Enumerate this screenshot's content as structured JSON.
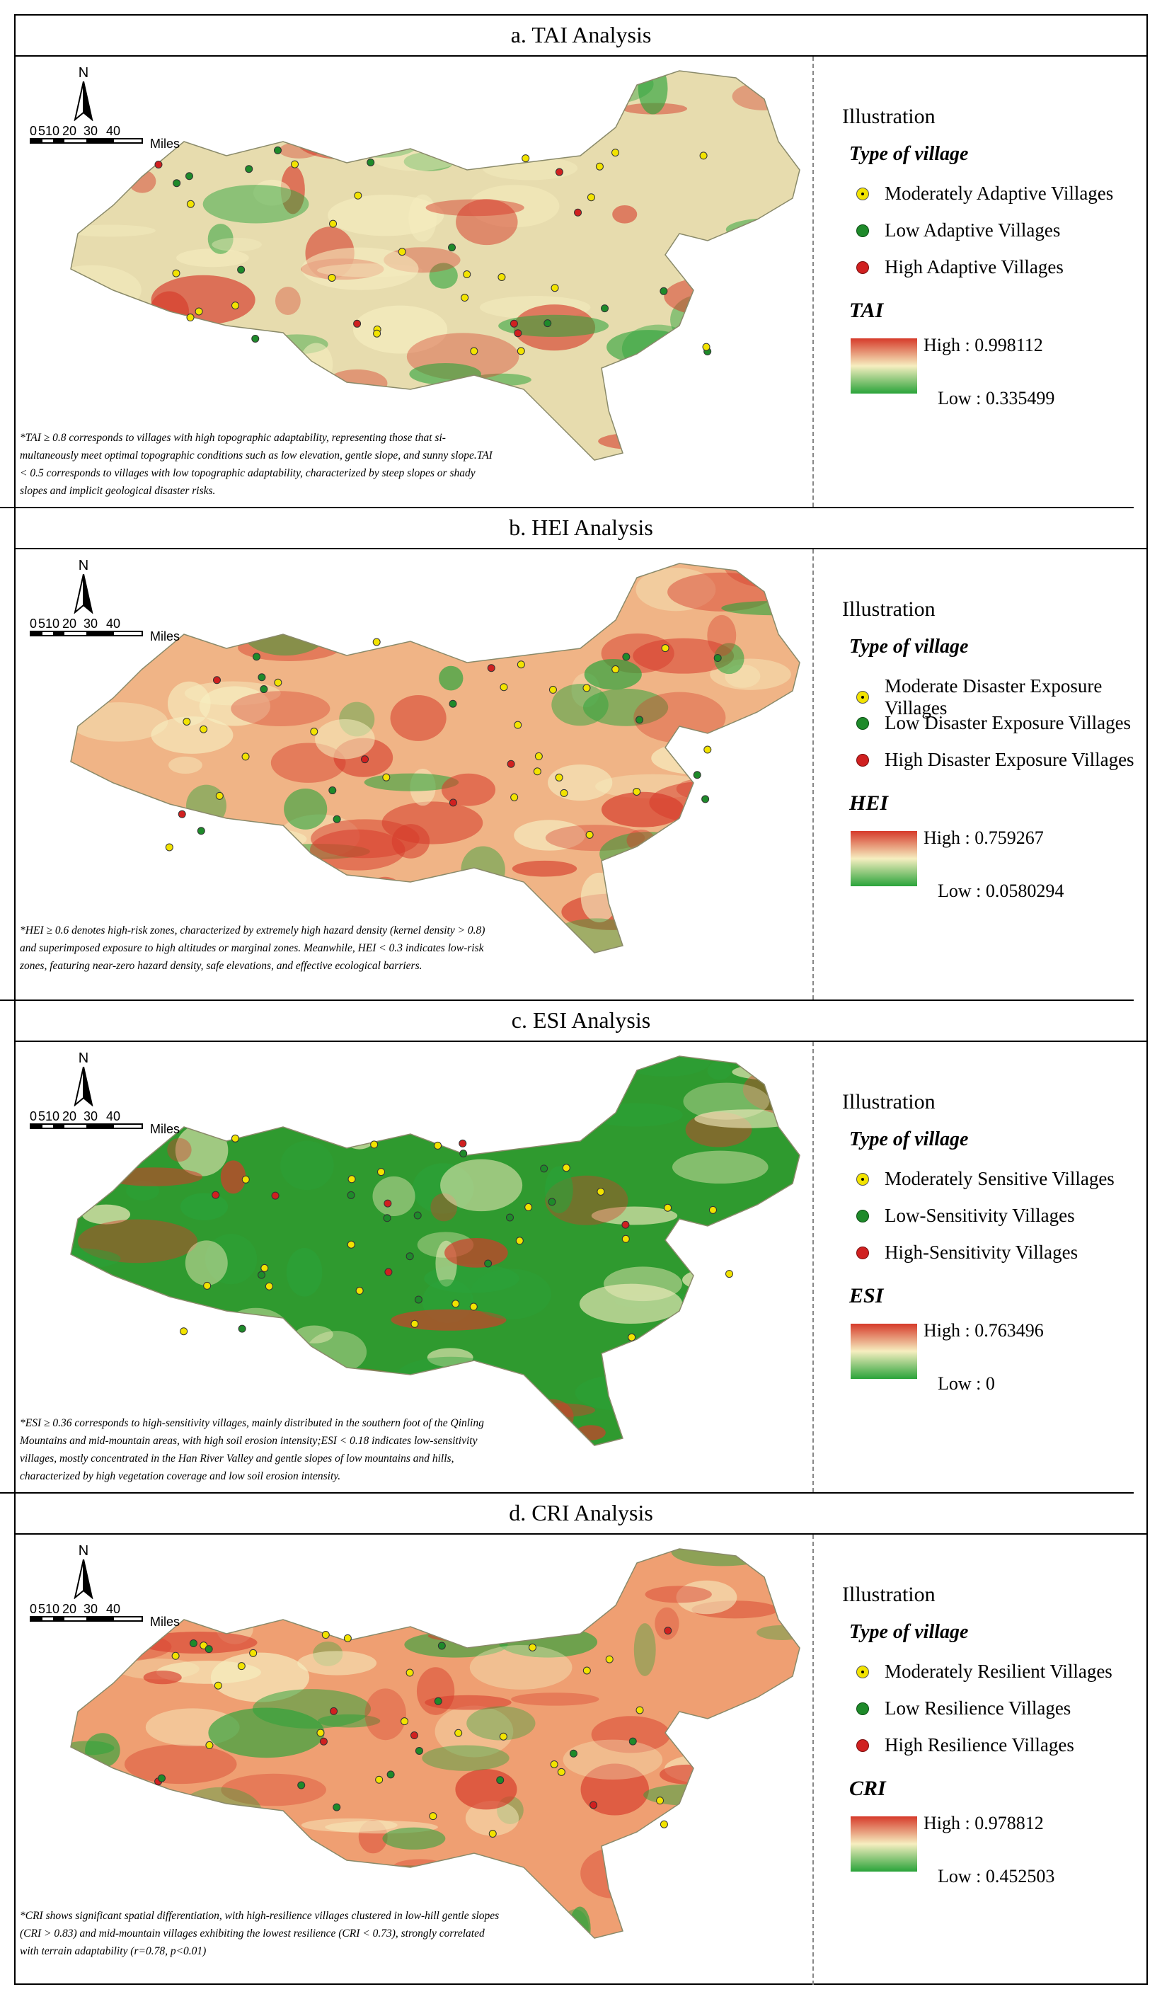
{
  "panels": [
    {
      "id": "tai",
      "title": "a. TAI Analysis",
      "index_name": "TAI",
      "high_label": "High : 0.998112",
      "low_label": "Low : 0.335499",
      "legend_heading": "Illustration",
      "legend_subheading": "Type of village",
      "legend_items": [
        "Moderately Adaptive Villages",
        "Low Adaptive Villages",
        "High Adaptive Villages"
      ],
      "footnote": "*TAI ≥ 0.8 corresponds to villages with high topographic adaptability, representing those that si-multaneously meet optimal topographic conditions such as low elevation, gentle slope, and sunny slope.TAI < 0.5 corresponds to villages with low topographic adaptability, characterized by steep slopes or shady slopes and implicit geological disaster risks.",
      "palette": {
        "high": "#d63a2a",
        "mid": "#f6eec0",
        "low": "#2aa33a",
        "base": "#e7dcae"
      }
    },
    {
      "id": "hei",
      "title": "b. HEI Analysis",
      "index_name": "HEI",
      "high_label": "High : 0.759267",
      "low_label": "Low : 0.0580294",
      "legend_heading": "Illustration",
      "legend_subheading": "Type of village",
      "legend_items": [
        "Moderate Disaster Exposure Villages",
        "Low Disaster Exposure Villages",
        "High Disaster Exposure Villages"
      ],
      "footnote": "*HEI ≥ 0.6 denotes high-risk zones, characterized by extremely high hazard density (kernel density > 0.8) and superimposed exposure to high altitudes or marginal zones. Meanwhile, HEI < 0.3 indicates low-risk zones, featuring near-zero hazard density, safe elevations, and effective ecological barriers.",
      "palette": {
        "high": "#d63a2a",
        "mid": "#f6eec0",
        "low": "#2aa33a",
        "base": "#f0b486"
      }
    },
    {
      "id": "esi",
      "title": "c. ESI Analysis",
      "index_name": "ESI",
      "high_label": "High : 0.763496",
      "low_label": "Low : 0",
      "legend_heading": "Illustration",
      "legend_subheading": "Type of village",
      "legend_items": [
        "Moderately Sensitive Villages",
        "Low-Sensitivity Villages",
        "High-Sensitivity Villages"
      ],
      "footnote": "*ESI ≥ 0.36 corresponds to high-sensitivity villages, mainly distributed in the southern foot of the Qinling Mountains and mid-mountain areas, with high soil erosion intensity;ESI < 0.18 indicates low-sensitivity villages, mostly concentrated in the Han River Valley and gentle slopes of low mountains and hills, characterized by high vegetation coverage and low soil erosion intensity.",
      "palette": {
        "high": "#d63a2a",
        "mid": "#f6eec0",
        "low": "#2aa33a",
        "base": "#2f9a2f"
      }
    },
    {
      "id": "cri",
      "title": "d. CRI Analysis",
      "index_name": "CRI",
      "high_label": "High : 0.978812",
      "low_label": "Low : 0.452503",
      "legend_heading": "Illustration",
      "legend_subheading": "Type of village",
      "legend_items": [
        "Moderately Resilient Villages",
        "Low Resilience Villages",
        "High Resilience Villages"
      ],
      "footnote": "*CRI shows significant spatial differentiation, with high-resilience villages clustered in low-hill gentle slopes (CRI > 0.83) and mid-mountain villages exhibiting the lowest resilience (CRI < 0.73), strongly correlated with terrain adaptability (r=0.78, p<0.01)",
      "palette": {
        "high": "#d63a2a",
        "mid": "#f6eec0",
        "low": "#2aa33a",
        "base": "#ef9f72"
      }
    }
  ],
  "map_common": {
    "north_label": "N",
    "scale_ticks": [
      "0",
      "5",
      "10",
      "20",
      "30",
      "40"
    ],
    "scale_unit": "Miles"
  }
}
